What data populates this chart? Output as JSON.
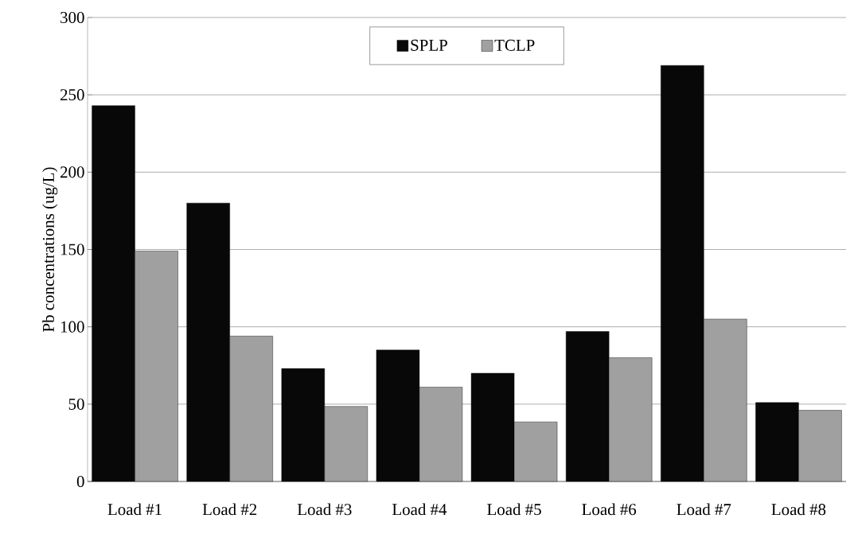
{
  "chart_data": {
    "type": "bar",
    "ylabel": "Pb concentrations (ug/L)",
    "categories": [
      "Load #1",
      "Load #2",
      "Load #3",
      "Load #4",
      "Load #5",
      "Load #6",
      "Load #7",
      "Load #8"
    ],
    "series": [
      {
        "name": "SPLP",
        "color": "#080808",
        "values": [
          243,
          180,
          73,
          85,
          70,
          97,
          269,
          51
        ]
      },
      {
        "name": "TCLP",
        "color": "#a0a0a0",
        "values": [
          149,
          94,
          48.5,
          61,
          38.5,
          80,
          105,
          46
        ]
      }
    ],
    "ylim": [
      0,
      300
    ],
    "yticks": [
      0,
      50,
      100,
      150,
      200,
      250,
      300
    ],
    "grid": "y",
    "legend": "top"
  }
}
